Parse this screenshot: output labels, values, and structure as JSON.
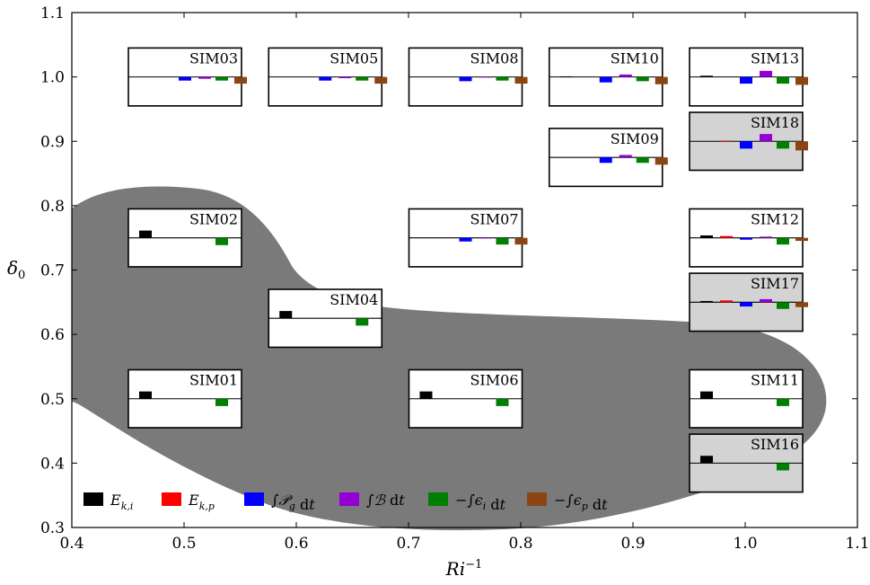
{
  "chart_data": {
    "type": "bar",
    "xlabel": {
      "base": "Ri",
      "sup": "−1"
    },
    "ylabel": {
      "base": "δ",
      "sub": "0"
    },
    "xlim": [
      0.4,
      1.1
    ],
    "ylim": [
      0.3,
      1.1
    ],
    "xticks": [
      "0.4",
      "0.5",
      "0.6",
      "0.7",
      "0.8",
      "0.9",
      "1.0",
      "1.1"
    ],
    "yticks": [
      "0.3",
      "0.4",
      "0.5",
      "0.6",
      "0.7",
      "0.8",
      "0.9",
      "1.0",
      "1.1"
    ],
    "grid": false,
    "legend_position": "bottom-left",
    "series": [
      {
        "key": "Eki",
        "color": "#000000",
        "label": {
          "main": "E",
          "sub": "k,i"
        }
      },
      {
        "key": "Ekp",
        "color": "#ff0000",
        "label": {
          "main": "E",
          "sub": "k,p"
        }
      },
      {
        "key": "Pg",
        "color": "#0000ff",
        "label": {
          "pre": "∫",
          "main": "𝒫",
          "sub": "g",
          "post": " d",
          "post_it": "t"
        }
      },
      {
        "key": "B",
        "color": "#9400d3",
        "label": {
          "pre": "∫",
          "main": "ℬ",
          "post": " d",
          "post_it": "t"
        }
      },
      {
        "key": "epsi",
        "color": "#008000",
        "label": {
          "pre": "−∫",
          "main": "ϵ",
          "sub": "i",
          "post": " d",
          "post_it": "t"
        }
      },
      {
        "key": "epsp",
        "color": "#8b4513",
        "label": {
          "pre": "−∫",
          "main": "ϵ",
          "sub": "p",
          "post": " d",
          "post_it": "t"
        }
      }
    ],
    "simulations": [
      {
        "name": "SIM01",
        "x": 0.5,
        "y": 0.5,
        "shaded": false,
        "values": [
          0.6,
          0,
          0,
          0,
          -0.6,
          0
        ]
      },
      {
        "name": "SIM02",
        "x": 0.5,
        "y": 0.75,
        "shaded": false,
        "values": [
          0.6,
          0,
          0,
          0,
          -0.6,
          0
        ]
      },
      {
        "name": "SIM03",
        "x": 0.5,
        "y": 1.0,
        "shaded": false,
        "values": [
          0,
          0,
          -0.3,
          -0.15,
          -0.3,
          -0.55
        ]
      },
      {
        "name": "SIM04",
        "x": 0.625,
        "y": 0.625,
        "shaded": false,
        "values": [
          0.6,
          0,
          0,
          0,
          -0.6,
          0
        ]
      },
      {
        "name": "SIM05",
        "x": 0.625,
        "y": 1.0,
        "shaded": false,
        "values": [
          0,
          0,
          -0.3,
          -0.1,
          -0.3,
          -0.55
        ]
      },
      {
        "name": "SIM06",
        "x": 0.75,
        "y": 0.5,
        "shaded": false,
        "values": [
          0.6,
          0,
          0,
          0,
          -0.6,
          0
        ]
      },
      {
        "name": "SIM07",
        "x": 0.75,
        "y": 0.75,
        "shaded": false,
        "values": [
          0,
          0,
          -0.3,
          -0.05,
          -0.55,
          -0.55
        ]
      },
      {
        "name": "SIM08",
        "x": 0.75,
        "y": 1.0,
        "shaded": false,
        "values": [
          0,
          0,
          -0.35,
          -0.05,
          -0.3,
          -0.55
        ]
      },
      {
        "name": "SIM09",
        "x": 0.875,
        "y": 0.875,
        "shaded": false,
        "values": [
          0,
          0,
          -0.45,
          0.2,
          -0.45,
          -0.6
        ]
      },
      {
        "name": "SIM10",
        "x": 0.875,
        "y": 1.0,
        "shaded": false,
        "values": [
          0.05,
          0,
          -0.45,
          0.2,
          -0.35,
          -0.6
        ]
      },
      {
        "name": "SIM11",
        "x": 1.0,
        "y": 0.5,
        "shaded": false,
        "values": [
          0.6,
          0,
          0,
          0,
          -0.6,
          0
        ]
      },
      {
        "name": "SIM12",
        "x": 1.0,
        "y": 0.75,
        "shaded": false,
        "values": [
          0.2,
          0.15,
          -0.15,
          0.1,
          -0.55,
          -0.25
        ]
      },
      {
        "name": "SIM13",
        "x": 1.0,
        "y": 1.0,
        "shaded": false,
        "values": [
          0.1,
          0,
          -0.55,
          0.5,
          -0.55,
          -0.65
        ]
      },
      {
        "name": "SIM16",
        "x": 1.0,
        "y": 0.4,
        "shaded": true,
        "values": [
          0.6,
          0,
          0,
          0,
          -0.6,
          0
        ]
      },
      {
        "name": "SIM17",
        "x": 1.0,
        "y": 0.65,
        "shaded": true,
        "values": [
          0.1,
          0.15,
          -0.35,
          0.25,
          -0.55,
          -0.4
        ]
      },
      {
        "name": "SIM18",
        "x": 1.0,
        "y": 0.9,
        "shaded": true,
        "values": [
          0,
          0.05,
          -0.6,
          0.6,
          -0.6,
          -0.75
        ]
      }
    ]
  }
}
